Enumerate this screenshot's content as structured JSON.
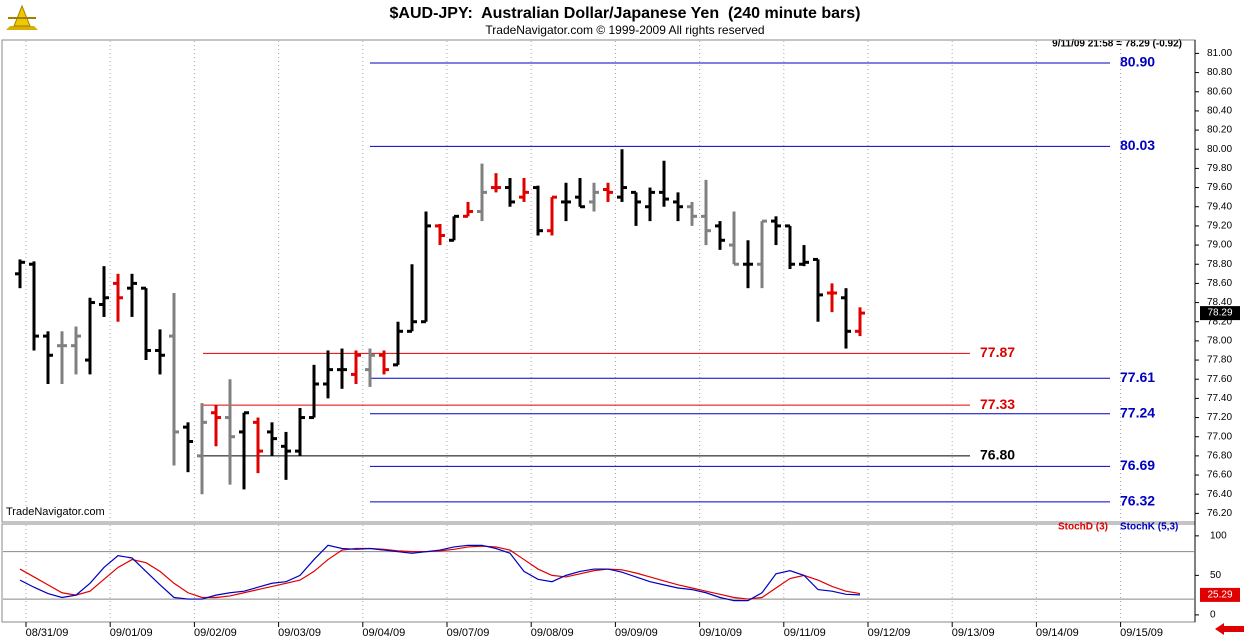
{
  "chart_data": [
    {
      "type": "ohlc",
      "title": "$AUD-JPY:  Australian Dollar/Japanese Yen  (240 minute bars)",
      "subtitle": "TradeNavigator.com © 1999-2009 All rights reserved",
      "info": "9/11/09 21:58 = 78.29 (-0.92)",
      "watermark": "TradeNavigator.com",
      "dates": [
        "08/31/09",
        "09/01/09",
        "09/02/09",
        "09/03/09",
        "09/04/09",
        "09/07/09",
        "09/08/09",
        "09/09/09",
        "09/10/09",
        "09/11/09",
        "09/12/09",
        "09/13/09",
        "09/14/09",
        "09/15/09"
      ],
      "open": [
        78.7,
        78.8,
        78.05,
        77.95,
        77.95,
        77.8,
        78.38,
        78.6,
        78.55,
        78.55,
        77.9,
        78.05,
        77.1,
        76.8,
        77.25,
        77.2,
        77.05,
        77.15,
        77.05,
        76.9,
        76.85,
        77.2,
        77.55,
        77.7,
        77.65,
        77.7,
        77.85,
        77.75,
        78.1,
        78.2,
        79.2,
        79.05,
        79.3,
        79.35,
        79.6,
        79.6,
        79.5,
        79.6,
        79.15,
        79.45,
        79.5,
        79.45,
        79.58,
        79.5,
        79.55,
        79.4,
        79.55,
        79.45,
        79.4,
        79.3,
        79.2,
        79.0,
        78.8,
        78.8,
        79.25,
        79.2,
        78.8,
        78.85,
        78.5,
        78.45,
        78.1
      ],
      "high": [
        78.85,
        78.83,
        78.1,
        78.1,
        78.15,
        78.45,
        78.78,
        78.7,
        78.7,
        78.55,
        78.12,
        78.5,
        77.15,
        77.35,
        77.33,
        77.6,
        77.25,
        77.2,
        77.15,
        77.05,
        77.3,
        77.75,
        77.9,
        77.92,
        77.9,
        77.92,
        77.9,
        78.2,
        78.8,
        79.35,
        79.22,
        79.3,
        79.45,
        79.85,
        79.75,
        79.7,
        79.7,
        79.62,
        79.5,
        79.65,
        79.7,
        79.65,
        79.65,
        80.0,
        79.55,
        79.6,
        79.88,
        79.55,
        79.45,
        79.68,
        79.25,
        79.35,
        79.05,
        79.25,
        79.3,
        79.2,
        79.0,
        78.85,
        78.6,
        78.55,
        78.35
      ],
      "low": [
        78.55,
        77.9,
        77.55,
        77.55,
        77.65,
        77.65,
        78.25,
        78.2,
        78.25,
        77.8,
        77.65,
        76.7,
        76.63,
        76.4,
        76.9,
        76.5,
        76.45,
        76.62,
        76.8,
        76.55,
        76.8,
        77.2,
        77.4,
        77.5,
        77.55,
        77.52,
        77.65,
        77.75,
        78.1,
        78.2,
        79.0,
        79.05,
        79.3,
        79.25,
        79.55,
        79.4,
        79.45,
        79.1,
        79.1,
        79.25,
        79.4,
        79.35,
        79.45,
        79.45,
        79.2,
        79.25,
        79.4,
        79.25,
        79.2,
        79.0,
        78.95,
        78.8,
        78.55,
        78.55,
        79.0,
        78.75,
        78.78,
        78.2,
        78.3,
        77.92,
        78.05
      ],
      "close": [
        78.82,
        78.05,
        77.85,
        77.95,
        78.05,
        78.4,
        78.45,
        78.45,
        78.6,
        77.9,
        77.85,
        77.05,
        76.95,
        77.15,
        77.2,
        77.0,
        77.25,
        76.85,
        76.98,
        76.85,
        77.2,
        77.55,
        77.7,
        77.7,
        77.85,
        77.85,
        77.7,
        78.1,
        78.2,
        79.2,
        79.1,
        79.3,
        79.35,
        79.55,
        79.6,
        79.45,
        79.55,
        79.15,
        79.5,
        79.45,
        79.4,
        79.55,
        79.55,
        79.6,
        79.45,
        79.55,
        79.48,
        79.4,
        79.3,
        79.15,
        79.05,
        78.8,
        78.8,
        79.25,
        79.2,
        78.8,
        78.82,
        78.48,
        78.5,
        78.1,
        78.29
      ],
      "colors": [
        "#000000",
        "#000000",
        "#000000",
        "#808080",
        "#808080",
        "#000000",
        "#000000",
        "#e00000",
        "#000000",
        "#000000",
        "#000000",
        "#808080",
        "#000000",
        "#808080",
        "#e00000",
        "#808080",
        "#000000",
        "#e00000",
        "#000000",
        "#000000",
        "#000000",
        "#000000",
        "#000000",
        "#000000",
        "#e00000",
        "#808080",
        "#e00000",
        "#000000",
        "#000000",
        "#000000",
        "#e00000",
        "#000000",
        "#e00000",
        "#808080",
        "#e00000",
        "#000000",
        "#e00000",
        "#000000",
        "#e00000",
        "#000000",
        "#000000",
        "#808080",
        "#e00000",
        "#000000",
        "#000000",
        "#000000",
        "#000000",
        "#000000",
        "#808080",
        "#808080",
        "#000000",
        "#808080",
        "#000000",
        "#808080",
        "#000000",
        "#000000",
        "#000000",
        "#000000",
        "#e00000",
        "#000000",
        "#e00000"
      ],
      "levels": [
        {
          "value": 80.9,
          "label": "80.90",
          "color": "#0000c0"
        },
        {
          "value": 80.03,
          "label": "80.03",
          "color": "#0000c0"
        },
        {
          "value": 77.87,
          "label": "77.87",
          "color": "#e00000"
        },
        {
          "value": 77.61,
          "label": "77.61",
          "color": "#0000c0"
        },
        {
          "value": 77.33,
          "label": "77.33",
          "color": "#e00000"
        },
        {
          "value": 77.24,
          "label": "77.24",
          "color": "#0000c0"
        },
        {
          "value": 76.8,
          "label": "76.80",
          "color": "#000000"
        },
        {
          "value": 76.69,
          "label": "76.69",
          "color": "#0000c0"
        },
        {
          "value": 76.32,
          "label": "76.32",
          "color": "#0000c0"
        }
      ],
      "ylim": [
        76.11,
        81.14
      ],
      "yticks": [
        {
          "value": 81,
          "label": "81.00"
        },
        {
          "value": 80.8,
          "label": "80.80"
        },
        {
          "value": 80.6,
          "label": "80.60"
        },
        {
          "value": 80.4,
          "label": "80.40"
        },
        {
          "value": 80.2,
          "label": "80.20"
        },
        {
          "value": 80,
          "label": "80.00"
        },
        {
          "value": 79.8,
          "label": "79.80"
        },
        {
          "value": 79.6,
          "label": "79.60"
        },
        {
          "value": 79.4,
          "label": "79.40"
        },
        {
          "value": 79.2,
          "label": "79.20"
        },
        {
          "value": 79,
          "label": "79.00"
        },
        {
          "value": 78.8,
          "label": "78.80"
        },
        {
          "value": 78.6,
          "label": "78.60"
        },
        {
          "value": 78.4,
          "label": "78.40"
        },
        {
          "value": 78.2,
          "label": "78.20"
        },
        {
          "value": 78,
          "label": "78.00"
        },
        {
          "value": 77.8,
          "label": "77.80"
        },
        {
          "value": 77.6,
          "label": "77.60"
        },
        {
          "value": 77.4,
          "label": "77.40"
        },
        {
          "value": 77.2,
          "label": "77.20"
        },
        {
          "value": 77,
          "label": "77.00"
        },
        {
          "value": 76.8,
          "label": "76.80"
        },
        {
          "value": 76.6,
          "label": "76.60"
        },
        {
          "value": 76.4,
          "label": "76.40"
        },
        {
          "value": 76.2,
          "label": "76.20"
        }
      ]
    },
    {
      "type": "line",
      "series": [
        {
          "name": "StochD (3)",
          "color": "#e00000",
          "values": [
            58,
            48,
            38,
            28,
            25,
            30,
            45,
            60,
            70,
            66,
            55,
            40,
            28,
            22,
            22,
            24,
            28,
            32,
            36,
            40,
            44,
            55,
            70,
            82,
            84,
            84,
            83,
            81,
            80,
            80,
            81,
            83,
            86,
            87,
            86,
            82,
            70,
            58,
            50,
            48,
            52,
            56,
            58,
            57,
            53,
            48,
            43,
            38,
            34,
            30,
            26,
            22,
            20,
            22,
            34,
            46,
            50,
            44,
            36,
            30,
            27
          ]
        },
        {
          "name": "StochK (5,3)",
          "color": "#0000c0",
          "values": [
            44,
            35,
            27,
            22,
            25,
            40,
            60,
            75,
            72,
            55,
            38,
            22,
            20,
            20,
            25,
            28,
            30,
            35,
            40,
            42,
            50,
            70,
            88,
            84,
            83,
            84,
            82,
            80,
            78,
            80,
            82,
            86,
            88,
            88,
            84,
            78,
            55,
            45,
            42,
            50,
            55,
            58,
            58,
            54,
            48,
            42,
            38,
            34,
            32,
            28,
            22,
            18,
            18,
            28,
            52,
            56,
            50,
            32,
            30,
            26,
            25.29
          ]
        }
      ],
      "levels": [
        80,
        20
      ],
      "ylim": [
        -9,
        115
      ],
      "yticks": [
        100,
        50,
        0
      ]
    }
  ]
}
